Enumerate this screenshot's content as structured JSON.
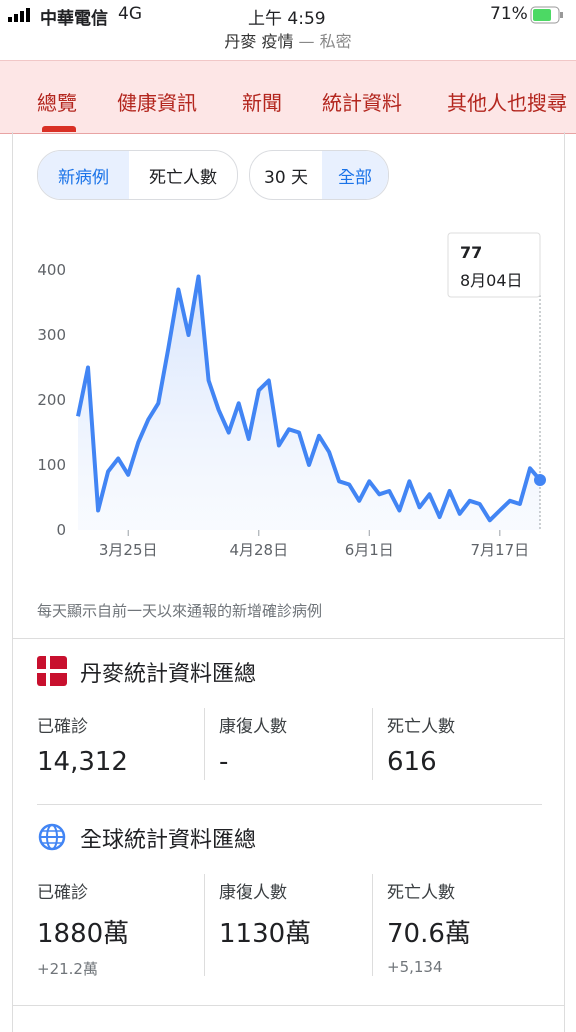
{
  "status_bar": {
    "carrier": "中華電信",
    "network": "4G",
    "time": "上午 4:59",
    "battery": "71%"
  },
  "address_bar": {
    "query": "丹麥 疫情",
    "mode": "— 私密"
  },
  "tabs": [
    "總覽",
    "健康資訊",
    "新聞",
    "統計資料",
    "其他人也搜尋"
  ],
  "toggles": {
    "metric": [
      "新病例",
      "死亡人數"
    ],
    "range": [
      "30 天",
      "全部"
    ]
  },
  "chart_data": {
    "type": "line",
    "categories": [
      null,
      null,
      null,
      null,
      null,
      "3月25日",
      null,
      null,
      null,
      null,
      null,
      null,
      null,
      null,
      null,
      null,
      null,
      null,
      "4月28日",
      null,
      null,
      null,
      null,
      null,
      null,
      null,
      null,
      null,
      null,
      "6月1日",
      null,
      null,
      null,
      null,
      null,
      null,
      null,
      null,
      null,
      null,
      null,
      null,
      "7月17日",
      null,
      null,
      null,
      null
    ],
    "values": [
      175,
      250,
      30,
      90,
      110,
      85,
      135,
      170,
      195,
      280,
      370,
      300,
      390,
      230,
      185,
      150,
      195,
      140,
      215,
      230,
      130,
      155,
      150,
      100,
      145,
      120,
      75,
      70,
      45,
      75,
      55,
      60,
      30,
      75,
      35,
      55,
      20,
      60,
      25,
      45,
      40,
      15,
      30,
      45,
      40,
      95,
      77
    ],
    "color": "#4285f4",
    "ylim": [
      0,
      400
    ],
    "yticks": [
      0,
      100,
      200,
      300,
      400
    ],
    "tooltip_date": "8月04日",
    "note": "每天顯示自前一天以來通報的新增確診病例"
  },
  "denmark": {
    "title": "丹麥統計資料匯總",
    "columns": [
      {
        "label": "已確診",
        "value": "14,312"
      },
      {
        "label": "康復人數",
        "value": "-"
      },
      {
        "label": "死亡人數",
        "value": "616"
      }
    ]
  },
  "global": {
    "title": "全球統計資料匯總",
    "columns": [
      {
        "label": "已確診",
        "value": "1880萬",
        "change": "+21.2萬"
      },
      {
        "label": "康復人數",
        "value": "1130萬"
      },
      {
        "label": "死亡人數",
        "value": "70.6萬",
        "change": "+5,134"
      }
    ]
  }
}
